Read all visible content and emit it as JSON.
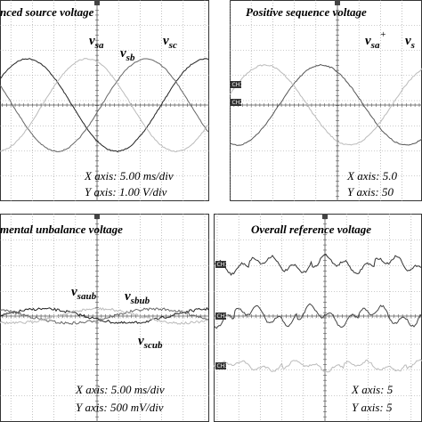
{
  "panels": [
    {
      "title": "nced source voltage",
      "signals": [
        {
          "v": "v",
          "sub": "sa"
        },
        {
          "v": "v",
          "sub": "sb"
        },
        {
          "v": "v",
          "sub": "sc"
        }
      ],
      "x_axis": "X axis: 5.00 ms/div",
      "y_axis": "Y axis: 1.00 V/div"
    },
    {
      "title": "Positive sequence voltage",
      "signals": [
        {
          "v": "v",
          "sub": "sa",
          "sup": "+"
        },
        {
          "v": "v",
          "sub": "s"
        }
      ],
      "channels": [
        "CH1",
        "CH2"
      ],
      "x_axis": "X axis: 5.0",
      "y_axis": "Y axis: 50"
    },
    {
      "title": "mental unbalance voltage",
      "signals": [
        {
          "v": "v",
          "sub": "saub"
        },
        {
          "v": "v",
          "sub": "sbub"
        },
        {
          "v": "v",
          "sub": "scub"
        }
      ],
      "x_axis": "X axis: 5.00 ms/div",
      "y_axis": "Y axis: 500 mV/div"
    },
    {
      "title": "Overall reference voltage",
      "channels": [
        "CH1",
        "CH2",
        "CH3"
      ],
      "x_axis": "X axis: 5",
      "y_axis": "Y axis: 5"
    }
  ]
}
